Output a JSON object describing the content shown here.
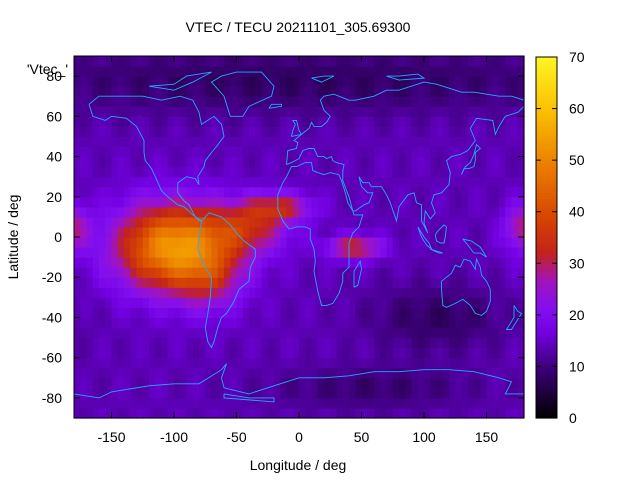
{
  "chart_data": {
    "type": "heatmap",
    "title": "VTEC / TECU 20211101_305.69300",
    "xlabel": "Longitude / deg",
    "ylabel": "Latitude / deg",
    "xlim": [
      -180,
      180
    ],
    "ylim": [
      -90,
      90
    ],
    "x_ticks": [
      -150,
      -100,
      -50,
      0,
      50,
      100,
      150
    ],
    "y_ticks": [
      -80,
      -60,
      -40,
      -20,
      0,
      20,
      40,
      60,
      80
    ],
    "x_tick_labels": [
      "-150",
      "-100",
      "-50",
      "0",
      "50",
      "100",
      "150"
    ],
    "y_tick_labels": [
      "-80",
      "-60",
      "-40",
      "-20",
      "0",
      "20",
      "40",
      "60",
      "80"
    ],
    "colorbar": {
      "min": 0,
      "max": 70,
      "ticks": [
        0,
        10,
        20,
        30,
        40,
        50,
        60,
        70
      ],
      "tick_labels": [
        "0",
        "10",
        "20",
        "30",
        "40",
        "50",
        "60",
        "70"
      ],
      "colormap": "black-purple-red-orange-yellow"
    },
    "key_label": "'Vtec_'",
    "grid_resolution_deg": {
      "lon": 5,
      "lat": 5
    },
    "field": {
      "background": 14,
      "anomalies": [
        {
          "lon": -100,
          "lat": -5,
          "sig_lon": 32,
          "sig_lat": 15,
          "amp": 39
        },
        {
          "lon": -70,
          "lat": -20,
          "sig_lon": 18,
          "sig_lat": 12,
          "amp": 10
        },
        {
          "lon": -40,
          "lat": 5,
          "sig_lon": 22,
          "sig_lat": 9,
          "amp": 16
        },
        {
          "lon": -15,
          "lat": 15,
          "sig_lon": 18,
          "sig_lat": 5,
          "amp": 16
        },
        {
          "lon": 45,
          "lat": -5,
          "sig_lon": 15,
          "sig_lat": 4,
          "amp": 20
        },
        {
          "lon": 178,
          "lat": 5,
          "sig_lon": 10,
          "sig_lat": 8,
          "amp": 14
        },
        {
          "lon": 0,
          "lat": 78,
          "sig_lon": 200,
          "sig_lat": 12,
          "amp": -6
        },
        {
          "lon": 110,
          "lat": -40,
          "sig_lon": 40,
          "sig_lat": 12,
          "amp": -6
        },
        {
          "lon": 60,
          "lat": -75,
          "sig_lon": 60,
          "sig_lat": 8,
          "amp": -5
        }
      ]
    }
  }
}
